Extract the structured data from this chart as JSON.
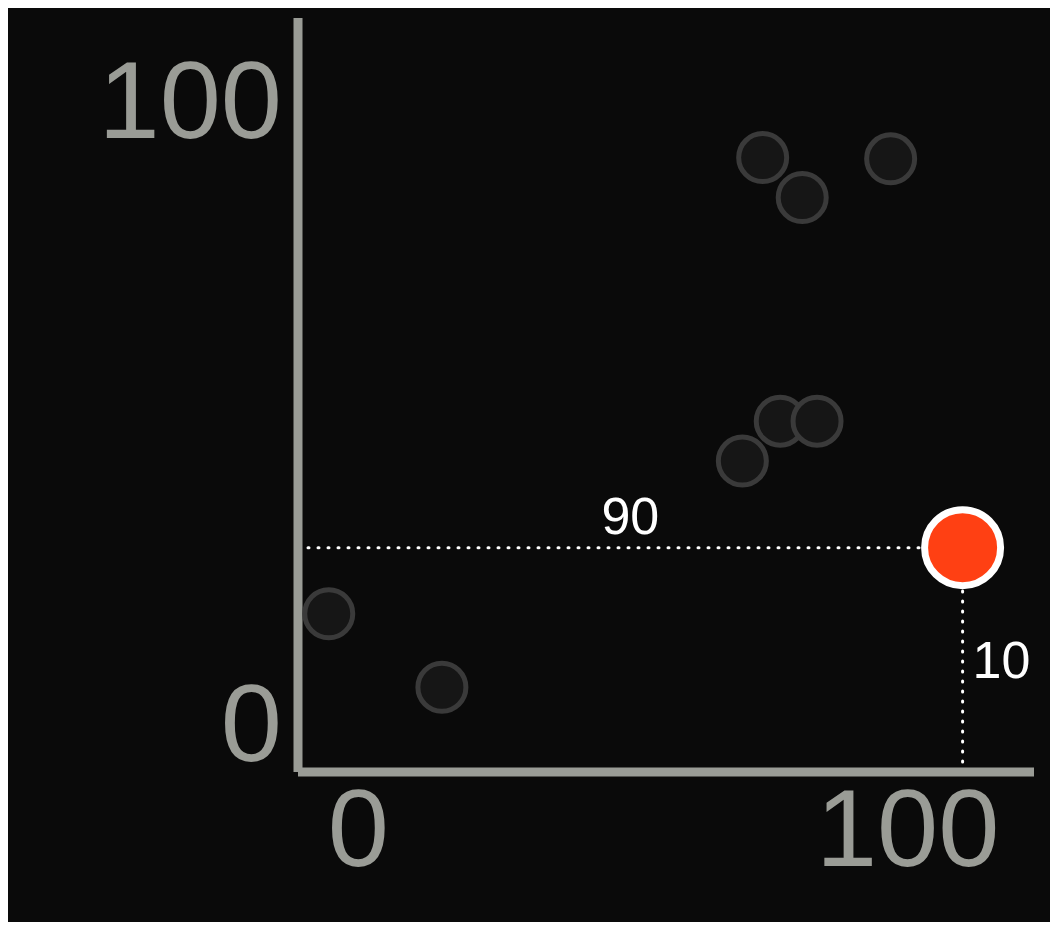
{
  "chart_data": {
    "type": "scatter",
    "xlim": [
      -11,
      123
    ],
    "ylim": [
      -8,
      113
    ],
    "xticks": [
      0,
      100
    ],
    "yticks": [
      0,
      100
    ],
    "grid": false,
    "legend": false,
    "marker": "circle",
    "series": [
      {
        "color": "#3a3a3a",
        "x": [
          -5.4,
          15.2,
          69.9,
          76.8,
          83.5,
          73.6,
          80.8,
          96.9
        ],
        "values": [
          17.4,
          5.6,
          41.9,
          48.3,
          48.3,
          90.6,
          84.2,
          90.4
        ]
      },
      {
        "color": "#ff4013",
        "x": [
          110
        ],
        "values": [
          28
        ]
      }
    ],
    "ref_lines": [
      {
        "axis": "y",
        "value": 28,
        "color": "#ffffff",
        "line_style": "dotted"
      },
      {
        "axis": "x",
        "value": 110,
        "color": "#ffffff",
        "line_style": "dotted"
      }
    ],
    "annotations": [
      "90",
      "10"
    ]
  }
}
